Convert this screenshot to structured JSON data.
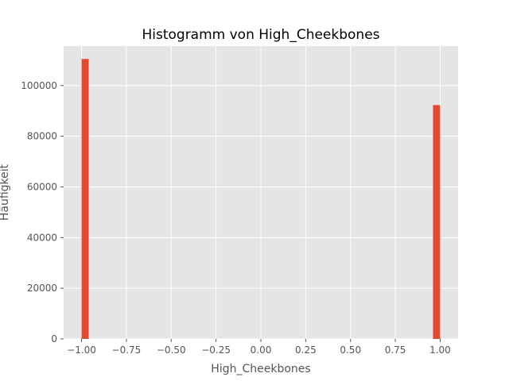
{
  "chart_data": {
    "type": "bar",
    "title": "Histogramm von High_Cheekbones",
    "xlabel": "High_Cheekbones",
    "ylabel": "Häufigkeit",
    "xlim": [
      -1.1,
      1.1
    ],
    "ylim": [
      0,
      115600
    ],
    "bin_width": 0.04,
    "bins": [
      {
        "x_start": -1.0,
        "x_end": -0.96,
        "value": 110500
      },
      {
        "x_start": 0.96,
        "x_end": 1.0,
        "value": 92300
      }
    ],
    "x_ticks": [
      {
        "value": -1.0,
        "label": "−1.00"
      },
      {
        "value": -0.75,
        "label": "−0.75"
      },
      {
        "value": -0.5,
        "label": "−0.50"
      },
      {
        "value": -0.25,
        "label": "−0.25"
      },
      {
        "value": 0.0,
        "label": "0.00"
      },
      {
        "value": 0.25,
        "label": "0.25"
      },
      {
        "value": 0.5,
        "label": "0.50"
      },
      {
        "value": 0.75,
        "label": "0.75"
      },
      {
        "value": 1.0,
        "label": "1.00"
      }
    ],
    "y_ticks": [
      {
        "value": 0,
        "label": "0"
      },
      {
        "value": 20000,
        "label": "20000"
      },
      {
        "value": 40000,
        "label": "40000"
      },
      {
        "value": 60000,
        "label": "60000"
      },
      {
        "value": 80000,
        "label": "80000"
      },
      {
        "value": 100000,
        "label": "100000"
      }
    ],
    "grid": true,
    "legend": "none",
    "colors": {
      "bar": "#e24a33",
      "plot_background": "#e5e5e5",
      "grid": "#ffffff",
      "text": "#555555"
    }
  }
}
